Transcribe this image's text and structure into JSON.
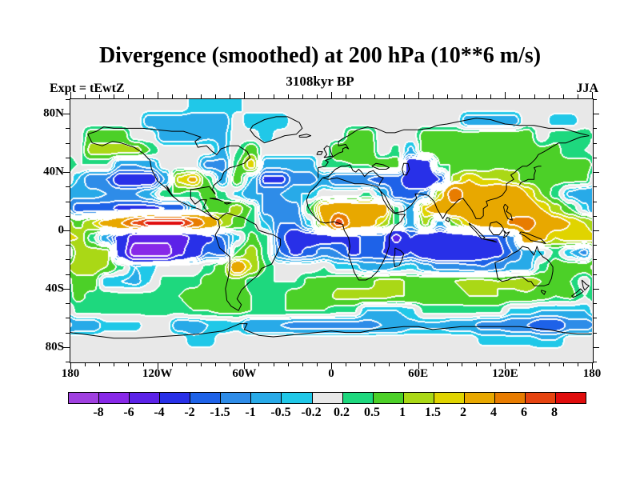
{
  "header": {
    "title": "Divergence (smoothed) at 200 hPa (10**6 m/s)",
    "subtitle": "3108kyr BP",
    "experiment": "Expt = tEwtZ",
    "season": "JJA"
  },
  "axes": {
    "x_labels": [
      {
        "lon": -180,
        "text": "180"
      },
      {
        "lon": -120,
        "text": "120W"
      },
      {
        "lon": -60,
        "text": "60W"
      },
      {
        "lon": 0,
        "text": "0"
      },
      {
        "lon": 60,
        "text": "60E"
      },
      {
        "lon": 120,
        "text": "120E"
      },
      {
        "lon": 180,
        "text": "180"
      }
    ],
    "y_labels": [
      {
        "lat": 80,
        "text": "80N"
      },
      {
        "lat": 40,
        "text": "40N"
      },
      {
        "lat": 0,
        "text": "0"
      },
      {
        "lat": -40,
        "text": "40S"
      },
      {
        "lat": -80,
        "text": "80S"
      }
    ],
    "minor_tick_step_deg": 10,
    "x_major_step_deg": 60,
    "y_major_step_deg": 40
  },
  "colorbar": {
    "labels": [
      "-8",
      "-6",
      "-4",
      "-2",
      "-1.5",
      "-1",
      "-0.5",
      "-0.2",
      "0.2",
      "0.5",
      "1",
      "1.5",
      "2",
      "4",
      "6",
      "8"
    ]
  },
  "chart_data": {
    "type": "heatmap",
    "title": "Divergence (smoothed) at 200 hPa (10**6 m/s)",
    "units": "10**6 m/s",
    "pressure_level": "200 hPa",
    "season": "JJA",
    "time": "3108kyr BP",
    "experiment": "tEwtZ",
    "lon_range": [
      -180,
      180
    ],
    "lat_range": [
      -90,
      90
    ],
    "grid_step_deg": 10,
    "lon_centers": [
      -175,
      -165,
      -155,
      -145,
      -135,
      -125,
      -115,
      -105,
      -95,
      -85,
      -75,
      -65,
      -55,
      -45,
      -35,
      -25,
      -15,
      -5,
      5,
      15,
      25,
      35,
      45,
      55,
      65,
      75,
      85,
      95,
      105,
      115,
      125,
      135,
      145,
      155,
      165,
      175
    ],
    "lat_centers": [
      85,
      75,
      65,
      55,
      45,
      35,
      25,
      15,
      5,
      -5,
      -15,
      -25,
      -35,
      -45,
      -55,
      -65,
      -75,
      -85
    ],
    "values": [
      [
        0,
        0,
        0,
        0,
        0,
        0,
        0,
        0,
        -0.3,
        -0.3,
        -0.3,
        -0.3,
        0,
        0,
        0,
        0,
        0,
        0,
        0,
        0,
        0,
        0,
        0,
        0,
        0,
        0,
        0,
        0,
        0,
        0,
        0,
        0,
        0,
        0,
        0,
        0
      ],
      [
        0,
        0,
        0,
        0,
        0,
        -0.8,
        -0.8,
        -0.8,
        -0.8,
        -0.8,
        -0.8,
        0,
        -0.5,
        -0.5,
        -0.5,
        0,
        0,
        0,
        0,
        0,
        0,
        0,
        0,
        0,
        0,
        0,
        0,
        -0.8,
        -0.8,
        -0.8,
        -0.8,
        0,
        0,
        -0.4,
        -0.4,
        0
      ],
      [
        0,
        0.8,
        0.8,
        0.8,
        0,
        0,
        -0.8,
        -0.8,
        -0.8,
        -0.6,
        -0.6,
        0,
        0,
        -0.4,
        0,
        0,
        0,
        0,
        0,
        0.8,
        0.8,
        0,
        0,
        0,
        0.7,
        0.7,
        0.7,
        0.7,
        0.8,
        0.8,
        0.8,
        0.8,
        0,
        0.4,
        0.4,
        0.4
      ],
      [
        0,
        1.2,
        1.2,
        1.2,
        1.2,
        0.5,
        0,
        0,
        0,
        0,
        -0.6,
        0.2,
        0.8,
        0,
        0,
        0,
        0,
        0,
        1.0,
        1.0,
        1.0,
        0,
        0.3,
        -0.6,
        0.8,
        0.8,
        0.8,
        0.9,
        0.9,
        0.9,
        0.9,
        0.9,
        0.6,
        0.6,
        0.2,
        0.2
      ],
      [
        0.2,
        0.2,
        0.2,
        -1,
        -1,
        -0.8,
        0,
        0,
        0,
        -1.2,
        -1.2,
        0.5,
        1.8,
        -0.8,
        -0.8,
        -0.8,
        -0.8,
        0.3,
        0.4,
        0.5,
        0.5,
        0.8,
        0.8,
        -3,
        -3,
        0.5,
        0.5,
        0.6,
        0.6,
        0.9,
        0.9,
        1.0,
        0.7,
        0.7,
        0.7,
        0.7
      ],
      [
        -0.5,
        -1.5,
        -1.5,
        -2.6,
        -2.6,
        -2.6,
        -1,
        1.6,
        2.2,
        0.5,
        -0.8,
        0.8,
        -0.5,
        -2.2,
        -2.2,
        -1.2,
        -1.2,
        -0.8,
        -1.5,
        -1.5,
        -1.5,
        -1.8,
        -1.8,
        -2.5,
        -3.8,
        -2,
        1.2,
        2,
        1.5,
        1.5,
        1.2,
        0.8,
        0.8,
        0.6,
        0.6,
        0.6
      ],
      [
        -0.8,
        -0.8,
        -1,
        -1,
        -1,
        -0.5,
        0.5,
        0.5,
        0.3,
        0.8,
        0.3,
        -0.3,
        -1,
        -1,
        -1,
        -0.5,
        -0.5,
        0,
        0,
        0,
        0.3,
        -0.5,
        -1.8,
        -1.8,
        -1.2,
        1.5,
        5.5,
        3,
        2.8,
        3.5,
        3.5,
        2,
        1,
        0.3,
        -0.6,
        -1
      ],
      [
        -1.8,
        -1.8,
        -1.8,
        -2.2,
        -2.2,
        -2.2,
        -2,
        -2,
        -0.3,
        0.5,
        0.8,
        1.2,
        0.5,
        -1.3,
        -1.3,
        -1.3,
        0.5,
        2.5,
        3.2,
        3,
        2.8,
        2.8,
        0.3,
        -0.8,
        2,
        3,
        3.2,
        3,
        3.5,
        3.6,
        3.6,
        2.8,
        2,
        1.2,
        0.5,
        -0.3
      ],
      [
        0.8,
        1.5,
        2.5,
        4,
        6.5,
        8.8,
        8.8,
        8.8,
        6,
        3.5,
        1.5,
        0.8,
        0.3,
        -0.5,
        -1.5,
        -1.5,
        -0.3,
        2,
        6.8,
        3.5,
        2.8,
        1.5,
        0.4,
        -0.8,
        1.2,
        -0.8,
        1,
        2,
        2.8,
        3.2,
        4.2,
        4.8,
        3.5,
        2.5,
        2,
        1.5
      ],
      [
        1.5,
        0.3,
        -1,
        -2.5,
        -5.5,
        -5.5,
        -5.5,
        -5.5,
        -3.5,
        -2.2,
        -1.5,
        -0.3,
        0.6,
        0.3,
        -1.8,
        -2.8,
        -2.5,
        -2.5,
        -2.2,
        -2.2,
        -1.8,
        -1.8,
        -4.5,
        -2,
        -2.8,
        -2.8,
        -2.8,
        -2.5,
        -2,
        -2,
        -1.2,
        3.5,
        2.2,
        1.5,
        1.8,
        1.8
      ],
      [
        1.2,
        1.2,
        1.2,
        -3,
        -7.2,
        -7.2,
        -7.2,
        -4.5,
        -2.8,
        -1.5,
        -1.8,
        0.5,
        1.3,
        0.3,
        -1.5,
        -2.2,
        -1.8,
        -1.2,
        -1.5,
        -2.2,
        -1.8,
        -2,
        -2.5,
        -2,
        -2.8,
        -3.5,
        -3.5,
        -3,
        -2.5,
        -2.2,
        -1.5,
        -0.8,
        -0.3,
        0.3,
        -0.5,
        -1.2
      ],
      [
        1.3,
        1.3,
        1,
        0.3,
        -0.5,
        -0.3,
        0,
        0,
        0,
        0.3,
        0.8,
        2.8,
        1.5,
        0.5,
        0,
        0,
        0,
        0.2,
        -0.3,
        -0.3,
        -0.8,
        -0.8,
        -0.5,
        -0.3,
        -0.8,
        -1.2,
        -1.2,
        -1.4,
        -1.5,
        -1.2,
        -0.8,
        -0.8,
        0.3,
        0.8,
        0.8,
        0.8
      ],
      [
        0.8,
        0.8,
        -0.5,
        -0.5,
        -0.6,
        -0.2,
        0.3,
        0.3,
        0.3,
        0.7,
        0.9,
        0.8,
        0.3,
        0.2,
        0.2,
        0.2,
        0.6,
        0.6,
        0.9,
        0.9,
        0.9,
        1.1,
        1.1,
        0.9,
        0.9,
        1.0,
        1.0,
        1.1,
        1.1,
        1.0,
        1.1,
        1.4,
        1.0,
        0.6,
        0.5,
        0
      ],
      [
        0.6,
        0.4,
        0.4,
        0.3,
        0.3,
        0.3,
        0.5,
        0.5,
        0.8,
        0.8,
        1.0,
        1.0,
        0.5,
        0.4,
        0.4,
        0.8,
        0.8,
        0.8,
        1.1,
        1.1,
        1.1,
        1.1,
        1.0,
        1.0,
        0.9,
        0.9,
        0.9,
        1.0,
        1.0,
        1.0,
        0.9,
        0.9,
        0.7,
        0.5,
        0.6,
        0.2
      ],
      [
        0.3,
        0.3,
        0.3,
        0.3,
        0.3,
        0.3,
        0.3,
        0.3,
        0.5,
        0.5,
        0.6,
        0.6,
        0.5,
        0.5,
        0.5,
        0.5,
        0.5,
        0.5,
        0.3,
        0.3,
        -0.5,
        -0.5,
        -0.5,
        -0.3,
        0.3,
        0.3,
        0.3,
        0.3,
        0.3,
        0.3,
        -0.3,
        -0.3,
        -0.5,
        -0.5,
        -0.5,
        -0.5
      ],
      [
        -0.8,
        -0.8,
        -0.3,
        -0.3,
        -0.3,
        0,
        0,
        -0.8,
        -0.8,
        -0.5,
        -0.5,
        -0.3,
        -1,
        -1,
        -1,
        -1.2,
        -1.2,
        -1.2,
        -1.2,
        -1.2,
        -1.2,
        -1,
        -1,
        -0.6,
        -0.6,
        -0.6,
        -0.8,
        -0.8,
        -1.2,
        -1.2,
        -1.5,
        -1.5,
        -2,
        -2,
        -1.3,
        -1.3
      ],
      [
        0,
        0,
        0,
        0,
        0,
        0,
        0,
        0,
        -0.4,
        -0.4,
        0,
        0,
        0,
        0,
        0,
        0,
        0,
        0,
        0,
        0,
        0,
        0,
        0,
        0,
        0,
        0,
        0,
        0,
        -0.3,
        -0.3,
        -0.3,
        -0.3,
        -0.5,
        -0.5,
        0,
        0
      ],
      [
        0,
        0,
        0,
        0,
        0,
        0,
        0,
        0,
        0,
        0,
        0,
        0,
        0,
        0,
        0,
        0,
        0,
        0,
        0,
        0,
        0,
        0,
        0,
        0,
        0,
        0,
        0,
        0,
        0,
        0,
        0,
        0,
        0,
        0,
        0,
        0
      ]
    ],
    "contour_levels": [
      -8,
      -6,
      -4,
      -2,
      -1.5,
      -1,
      -0.5,
      -0.2,
      0.2,
      0.5,
      1,
      1.5,
      2,
      4,
      6,
      8
    ],
    "fill_colors": [
      "#A040E0",
      "#8828E8",
      "#5C22E8",
      "#2830E8",
      "#1E62E8",
      "#2E8CE8",
      "#28AAE8",
      "#20C8E8",
      "#E8E8E8",
      "#1ED87E",
      "#4CD028",
      "#AAD816",
      "#E0D400",
      "#E8A800",
      "#E87C00",
      "#E64410",
      "#E00D0D"
    ],
    "neutral_color": "#E8E8E8",
    "contour_line_color": "#FFFFFF",
    "coastline_color": "#000000",
    "legend_position": "bottom"
  }
}
